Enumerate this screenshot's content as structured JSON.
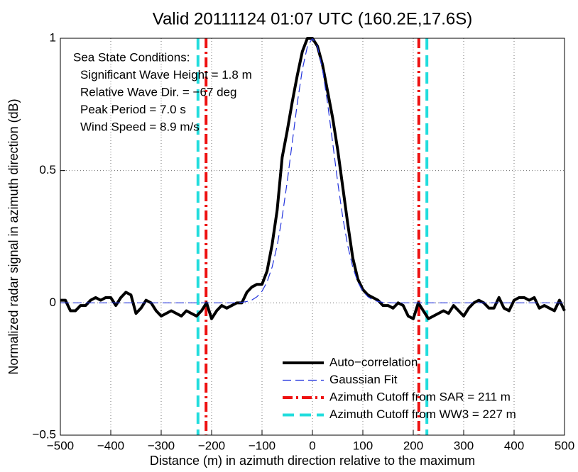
{
  "chart_data": {
    "type": "line",
    "title": "Valid 20111124 01:07 UTC (160.2E,17.6S)",
    "xlabel": "Distance (m) in azimuth direction relative to the maximum",
    "ylabel": "Normalized radar signal in azimuth direction (dB)",
    "xlim": [
      -500,
      500
    ],
    "ylim": [
      -0.5,
      1
    ],
    "xticks": [
      {
        "value": -500,
        "label": "−500"
      },
      {
        "value": -400,
        "label": "−400"
      },
      {
        "value": -300,
        "label": "−300"
      },
      {
        "value": -200,
        "label": "−200"
      },
      {
        "value": -100,
        "label": "−100"
      },
      0,
      100,
      200,
      300,
      400,
      500
    ],
    "yticks": [
      {
        "value": -0.5,
        "label": "−0.5"
      },
      0,
      0.5,
      1
    ],
    "grid": true,
    "legend": "lower right",
    "x": [
      -500,
      -490,
      -480,
      -470,
      -460,
      -450,
      -440,
      -430,
      -420,
      -410,
      -400,
      -390,
      -380,
      -370,
      -360,
      -350,
      -340,
      -330,
      -320,
      -310,
      -300,
      -290,
      -280,
      -270,
      -260,
      -250,
      -240,
      -230,
      -220,
      -210,
      -200,
      -190,
      -180,
      -170,
      -160,
      -150,
      -140,
      -130,
      -120,
      -110,
      -100,
      -90,
      -80,
      -70,
      -60,
      -50,
      -40,
      -30,
      -20,
      -10,
      0,
      10,
      20,
      30,
      40,
      50,
      60,
      70,
      80,
      90,
      100,
      110,
      120,
      130,
      140,
      150,
      160,
      170,
      180,
      190,
      200,
      210,
      220,
      230,
      240,
      250,
      260,
      270,
      280,
      290,
      300,
      310,
      320,
      330,
      340,
      350,
      360,
      370,
      380,
      390,
      400,
      410,
      420,
      430,
      440,
      450,
      460,
      470,
      480,
      490,
      500
    ],
    "series": [
      {
        "name": "Auto−correlation",
        "color": "#000000",
        "width": 4,
        "dash": "none",
        "values": [
          0.01,
          0.01,
          -0.03,
          -0.03,
          -0.01,
          -0.01,
          0.01,
          0.02,
          0.01,
          0.02,
          0.02,
          -0.01,
          0.02,
          0.04,
          0.03,
          -0.04,
          -0.02,
          0.01,
          0,
          -0.03,
          -0.05,
          -0.04,
          -0.03,
          -0.04,
          -0.05,
          -0.03,
          -0.04,
          -0.05,
          -0.03,
          0,
          -0.06,
          -0.03,
          -0.01,
          -0.02,
          -0.01,
          0,
          0,
          0.04,
          0.06,
          0.07,
          0.07,
          0.12,
          0.22,
          0.35,
          0.55,
          0.65,
          0.76,
          0.86,
          0.95,
          1,
          1,
          0.97,
          0.9,
          0.8,
          0.7,
          0.58,
          0.44,
          0.3,
          0.17,
          0.09,
          0.05,
          0.03,
          0.02,
          0.01,
          -0.01,
          -0.01,
          -0.02,
          0,
          -0.01,
          -0.05,
          -0.06,
          0,
          -0.03,
          -0.06,
          -0.05,
          -0.04,
          -0.03,
          -0.04,
          -0.01,
          -0.03,
          -0.05,
          -0.02,
          0,
          0.01,
          0,
          -0.02,
          -0.02,
          0.02,
          -0.02,
          -0.03,
          0.01,
          0.02,
          0.02,
          0.01,
          0.02,
          -0.02,
          -0.01,
          -0.02,
          -0.03,
          0.01,
          -0.03
        ]
      },
      {
        "name": "Gaussian Fit",
        "color": "#2233dd",
        "width": 1.2,
        "dash": "12 6",
        "values": [
          0,
          0,
          0,
          0,
          0,
          0,
          0,
          0,
          0,
          0,
          0,
          0,
          0,
          0,
          0,
          0,
          0,
          0,
          0,
          0,
          0,
          0,
          0,
          0,
          0,
          0,
          0,
          0,
          0,
          0,
          0,
          0,
          0,
          0,
          0,
          0.001,
          0.002,
          0.005,
          0.011,
          0.023,
          0.044,
          0.079,
          0.135,
          0.216,
          0.325,
          0.458,
          0.607,
          0.755,
          0.882,
          0.969,
          1,
          0.969,
          0.882,
          0.755,
          0.607,
          0.458,
          0.325,
          0.216,
          0.135,
          0.079,
          0.044,
          0.023,
          0.011,
          0.005,
          0.002,
          0.001,
          0,
          0,
          0,
          0,
          0,
          0,
          0,
          0,
          0,
          0,
          0,
          0,
          0,
          0,
          0,
          0,
          0,
          0,
          0,
          0,
          0,
          0,
          0,
          0,
          0,
          0,
          0,
          0,
          0,
          0,
          0,
          0,
          0,
          0,
          0
        ]
      }
    ],
    "vlines": [
      {
        "name": "Azimuth Cutoff from SAR = 211 m",
        "color": "#ee1111",
        "width": 4,
        "dash": "14 5 3 5",
        "values": [
          -211,
          211
        ]
      },
      {
        "name": "Azimuth Cutoff from WW3 = 227 m",
        "color": "#22dddd",
        "width": 4,
        "dash": "16 8",
        "values": [
          -227,
          227
        ]
      }
    ],
    "annotations": [
      "Sea State Conditions:",
      "Significant Wave Height = 1.8 m",
      "Relative Wave Dir. = −67 deg",
      "Peak Period = 7.0 s",
      "Wind Speed = 8.9 m/s"
    ]
  }
}
